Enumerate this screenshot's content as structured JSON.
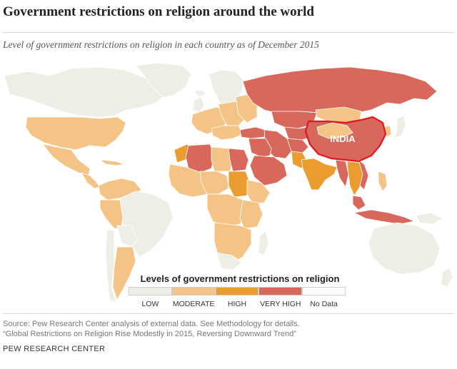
{
  "title": "Government restrictions on religion around the world",
  "subtitle": "Level of government restrictions on religion in each country as of December 2015",
  "colors": {
    "low": "#efeee6",
    "moderate": "#f4c487",
    "high": "#eb9c2e",
    "very_high": "#d8685c",
    "no_data": "#ffffff",
    "india_outline": "#e4141c"
  },
  "map": {
    "highlight_label": "INDIA"
  },
  "legend": {
    "title": "Levels of government restrictions on religion",
    "items": [
      {
        "label": "LOW",
        "key": "low"
      },
      {
        "label": "MODERATE",
        "key": "moderate"
      },
      {
        "label": "HIGH",
        "key": "high"
      },
      {
        "label": "VERY HIGH",
        "key": "very_high"
      },
      {
        "label": "No Data",
        "key": "no_data"
      }
    ]
  },
  "source": {
    "line1": "Source: Pew Research Center analysis of external data. See Methodology for details.",
    "line2": "“Global Restrictions on Religion Rise Modestly in 2015, Reversing Downward Trend”"
  },
  "brand": "PEW RESEARCH CENTER"
}
